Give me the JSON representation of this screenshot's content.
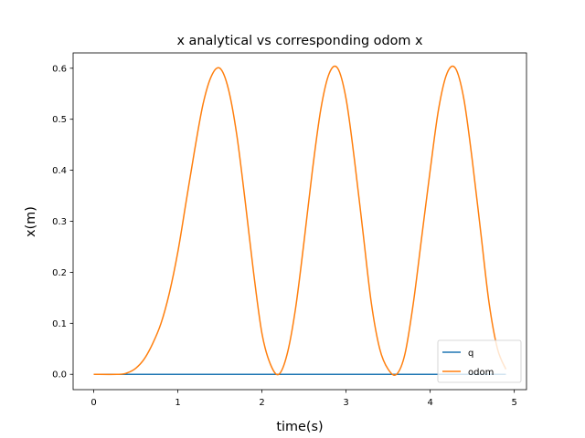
{
  "chart_data": {
    "type": "line",
    "title": "x analytical vs corresponding odom x",
    "xlabel": "time(s)",
    "ylabel": "x(m)",
    "xlim": [
      -0.245,
      5.145
    ],
    "ylim": [
      -0.03,
      0.63
    ],
    "xticks": [
      0,
      1,
      2,
      3,
      4,
      5
    ],
    "yticks": [
      0.0,
      0.1,
      0.2,
      0.3,
      0.4,
      0.5,
      0.6
    ],
    "xtick_labels": [
      "0",
      "1",
      "2",
      "3",
      "4",
      "5"
    ],
    "ytick_labels": [
      "0.0",
      "0.1",
      "0.2",
      "0.3",
      "0.4",
      "0.5",
      "0.6"
    ],
    "grid": false,
    "legend_position": "lower-right",
    "series": [
      {
        "name": "q",
        "color": "#1f77b4",
        "x": [
          0,
          4.9
        ],
        "y": [
          0.0,
          0.0
        ]
      },
      {
        "name": "odom",
        "color": "#ff7f0e",
        "x": [
          0.0,
          0.3,
          0.4,
          0.5,
          0.6,
          0.7,
          0.8,
          0.9,
          1.0,
          1.1,
          1.2,
          1.3,
          1.4,
          1.5,
          1.6,
          1.7,
          1.8,
          1.9,
          2.0,
          2.1,
          2.2,
          2.3,
          2.4,
          2.5,
          2.6,
          2.7,
          2.8,
          2.9,
          3.0,
          3.1,
          3.2,
          3.3,
          3.4,
          3.5,
          3.6,
          3.7,
          3.8,
          3.9,
          4.0,
          4.1,
          4.2,
          4.3,
          4.4,
          4.5,
          4.6,
          4.7,
          4.8,
          4.9
        ],
        "y": [
          0.0,
          0.0,
          0.003,
          0.012,
          0.03,
          0.06,
          0.1,
          0.16,
          0.24,
          0.34,
          0.44,
          0.53,
          0.585,
          0.6,
          0.56,
          0.47,
          0.34,
          0.2,
          0.08,
          0.02,
          0.0,
          0.04,
          0.13,
          0.26,
          0.4,
          0.52,
          0.59,
          0.6,
          0.54,
          0.42,
          0.28,
          0.14,
          0.05,
          0.01,
          0.0,
          0.04,
          0.14,
          0.27,
          0.4,
          0.52,
          0.59,
          0.6,
          0.54,
          0.42,
          0.28,
          0.14,
          0.05,
          0.01
        ]
      }
    ]
  }
}
